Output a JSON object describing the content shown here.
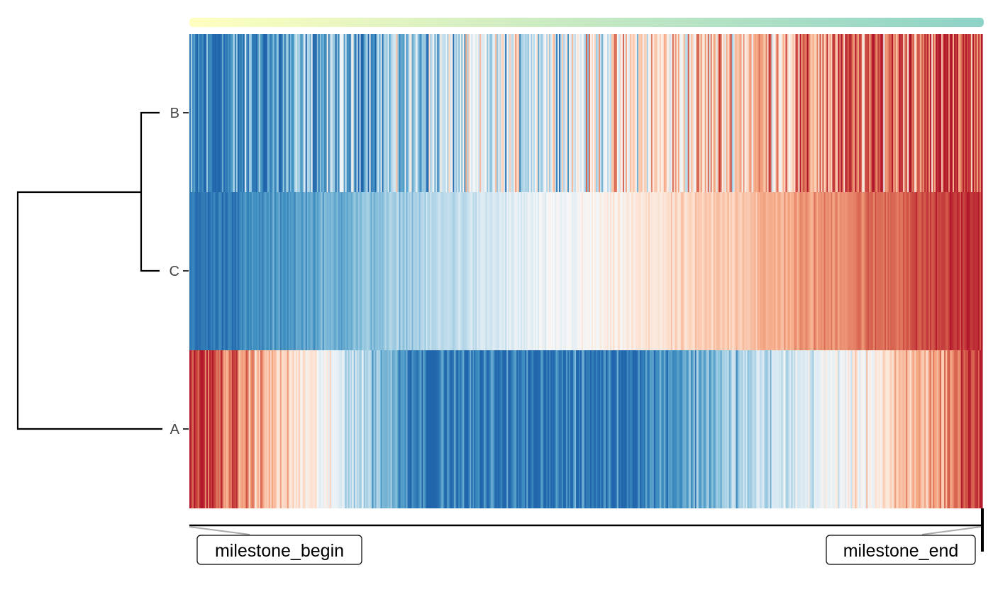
{
  "chart_data": {
    "type": "heatmap",
    "title": "",
    "xlabel": "",
    "ylabel": "",
    "rows": [
      "B",
      "C",
      "A"
    ],
    "n_cells": 560,
    "value_range": [
      -1,
      1
    ],
    "colormap": {
      "name": "RdBu (reversed)",
      "stops": [
        "#2166AC",
        "#4393C3",
        "#92C5DE",
        "#D1E5F0",
        "#F7F7F7",
        "#FDDBC7",
        "#F4A582",
        "#D6604D",
        "#B2182B"
      ]
    },
    "row_trends": [
      {
        "row": "B",
        "start": -0.95,
        "end": 0.95,
        "noise": 0.55,
        "note": "noisy increase"
      },
      {
        "row": "C",
        "start": -0.95,
        "end": 0.95,
        "noise": 0.12,
        "note": "smooth increase"
      },
      {
        "row": "A",
        "profile": [
          [
            0,
            0.95
          ],
          [
            0.07,
            0.55
          ],
          [
            0.15,
            0.1
          ],
          [
            0.3,
            -0.9
          ],
          [
            0.55,
            -0.9
          ],
          [
            0.75,
            -0.25
          ],
          [
            0.85,
            0.05
          ],
          [
            0.95,
            0.55
          ],
          [
            1,
            0.95
          ]
        ],
        "noise": 0.25,
        "note": "high-low-high"
      }
    ],
    "pseudotime_bar": {
      "start_color": "#FFFFBF",
      "end_color": "#8DD3C7"
    },
    "dendrogram": {
      "merges": [
        [
          "B",
          "C"
        ],
        [
          "BC",
          "A"
        ]
      ]
    },
    "milestones": [
      {
        "label": "milestone_begin",
        "position": 0
      },
      {
        "label": "milestone_end",
        "position": 1
      }
    ]
  }
}
